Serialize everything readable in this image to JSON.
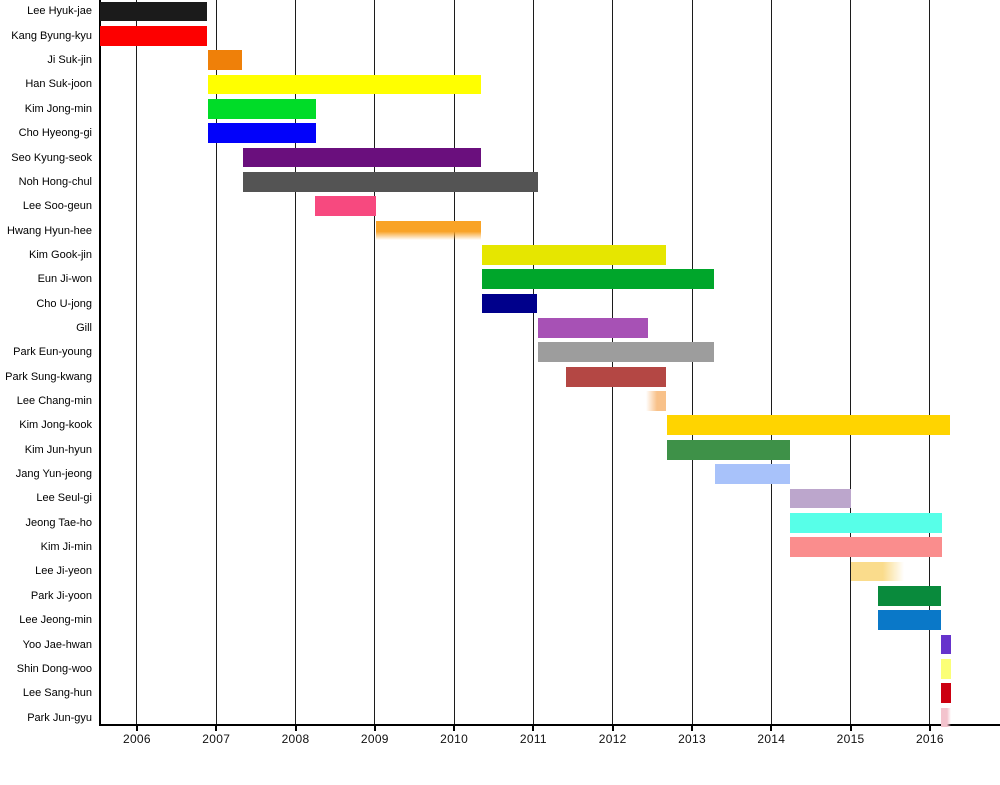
{
  "page": {
    "background_color": "#ffffff",
    "axis_color": "#000000",
    "gridline_color": "#1c1c1c"
  },
  "chart_data": {
    "type": "gantt",
    "title": "",
    "xlabel": "",
    "ylabel": "",
    "legend": false,
    "grid": true,
    "x_axis": {
      "tick_years": [
        2006,
        2007,
        2008,
        2009,
        2010,
        2011,
        2012,
        2013,
        2014,
        2015,
        2016
      ],
      "range": [
        2005.534,
        2016.884
      ]
    },
    "rows": [
      {
        "name": "Lee Hyuk-jae",
        "start": 2005.53,
        "end": 2006.88,
        "color": "#1b1b1b",
        "fade": null
      },
      {
        "name": "Kang Byung-kyu",
        "start": 2005.53,
        "end": 2006.88,
        "color": "#fd0000",
        "fade": null
      },
      {
        "name": "Ji Suk-jin",
        "start": 2006.89,
        "end": 2007.33,
        "color": "#ef8009",
        "fade": null
      },
      {
        "name": "Han Suk-joon",
        "start": 2006.89,
        "end": 2010.34,
        "color": "#ffff00",
        "fade": null
      },
      {
        "name": "Kim Jong-min",
        "start": 2006.89,
        "end": 2008.26,
        "color": "#00dc28",
        "fade": null
      },
      {
        "name": "Cho Hyeong-gi",
        "start": 2006.89,
        "end": 2008.26,
        "color": "#0202fa",
        "fade": null
      },
      {
        "name": "Seo Kyung-seok",
        "start": 2007.34,
        "end": 2010.34,
        "color": "#6a0f7d",
        "fade": null
      },
      {
        "name": "Noh Hong-chul",
        "start": 2007.34,
        "end": 2011.06,
        "color": "#545454",
        "fade": null
      },
      {
        "name": "Lee Soo-geun",
        "start": 2008.24,
        "end": 2009.01,
        "color": "#f7497f",
        "fade": null
      },
      {
        "name": "Hwang Hyun-hee",
        "start": 2009.01,
        "end": 2010.34,
        "color": "#f9a326",
        "fade": "bottom"
      },
      {
        "name": "Kim Gook-jin",
        "start": 2010.35,
        "end": 2012.67,
        "color": "#e6e600",
        "fade": null
      },
      {
        "name": "Eun Ji-won",
        "start": 2010.35,
        "end": 2013.28,
        "color": "#00a62b",
        "fade": null
      },
      {
        "name": "Cho U-jong",
        "start": 2010.35,
        "end": 2011.04,
        "color": "#00008b",
        "fade": null
      },
      {
        "name": "Gill",
        "start": 2011.06,
        "end": 2012.44,
        "color": "#a751b5",
        "fade": null
      },
      {
        "name": "Park Eun-young",
        "start": 2011.06,
        "end": 2013.28,
        "color": "#9d9d9d",
        "fade": null
      },
      {
        "name": "Park Sung-kwang",
        "start": 2011.41,
        "end": 2012.67,
        "color": "#b44744",
        "fade": null
      },
      {
        "name": "Lee Chang-min",
        "start": 2012.42,
        "end": 2012.67,
        "color": "#f8c189",
        "fade": "left"
      },
      {
        "name": "Kim Jong-kook",
        "start": 2012.68,
        "end": 2016.25,
        "color": "#ffd400",
        "fade": null
      },
      {
        "name": "Kim Jun-hyun",
        "start": 2012.68,
        "end": 2014.23,
        "color": "#3e9148",
        "fade": null
      },
      {
        "name": "Jang Yun-jeong",
        "start": 2013.29,
        "end": 2014.23,
        "color": "#a8c2fa",
        "fade": null
      },
      {
        "name": "Lee Seul-gi",
        "start": 2014.23,
        "end": 2015.0,
        "color": "#bca6cc",
        "fade": null
      },
      {
        "name": "Jeong Tae-ho",
        "start": 2014.23,
        "end": 2016.15,
        "color": "#57ffe8",
        "fade": null
      },
      {
        "name": "Kim Ji-min",
        "start": 2014.23,
        "end": 2016.15,
        "color": "#fa8d8d",
        "fade": null
      },
      {
        "name": "Lee Ji-yeon",
        "start": 2015.01,
        "end": 2015.67,
        "color": "#fadc8c",
        "fade": "right"
      },
      {
        "name": "Park Ji-yoon",
        "start": 2015.34,
        "end": 2016.14,
        "color": "#098a3c",
        "fade": null
      },
      {
        "name": "Lee Jeong-min",
        "start": 2015.34,
        "end": 2016.14,
        "color": "#0a78c8",
        "fade": null
      },
      {
        "name": "Yoo Jae-hwan",
        "start": 2016.14,
        "end": 2016.27,
        "color": "#6633cc",
        "fade": null
      },
      {
        "name": "Shin Dong-woo",
        "start": 2016.14,
        "end": 2016.27,
        "color": "#fbff77",
        "fade": null
      },
      {
        "name": "Lee Sang-hun",
        "start": 2016.14,
        "end": 2016.27,
        "color": "#cc0011",
        "fade": null
      },
      {
        "name": "Park Jun-gyu",
        "start": 2016.14,
        "end": 2016.27,
        "color": "#f3c3cd",
        "fade": "right"
      }
    ]
  }
}
